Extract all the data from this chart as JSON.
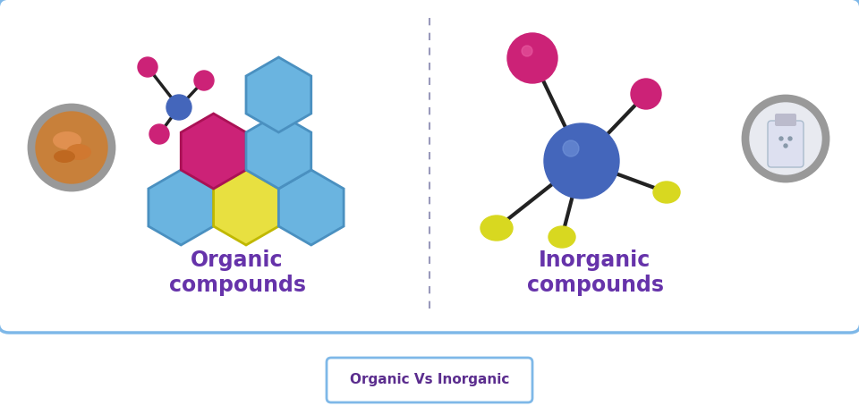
{
  "bg_color": "#ffffff",
  "border_color": "#7eb8e8",
  "divider_color": "#9999bb",
  "organic_label": "Organic\ncompounds",
  "inorganic_label": "Inorganic\ncompounds",
  "title_label": "Organic Vs Inorganic",
  "label_color": "#6633aa",
  "title_color": "#5b2d8e",
  "title_border_color": "#7eb8e8",
  "hex_blue": "#6ab4e0",
  "hex_blue_edge": "#4a90c0",
  "hex_pink": "#cc2277",
  "hex_pink_edge": "#aa1155",
  "hex_yellow": "#e8e040",
  "hex_yellow_edge": "#c0b800",
  "mol_blue": "#4466bb",
  "mol_pink": "#cc2277",
  "ball_blue": "#4466bb",
  "ball_pink": "#cc2277",
  "ball_yellow": "#d8d820",
  "gray_bg": "#999999",
  "bond_color": "#222222"
}
